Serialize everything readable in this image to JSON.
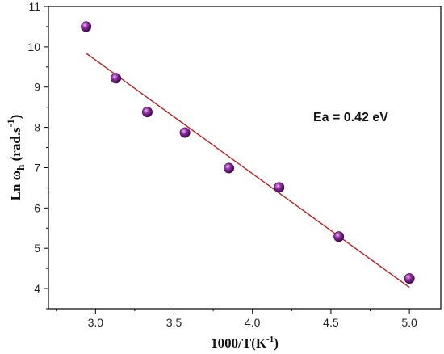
{
  "chart_data": {
    "type": "scatter",
    "x": [
      2.94,
      3.13,
      3.33,
      3.57,
      3.85,
      4.17,
      4.55,
      5.0
    ],
    "y": [
      10.5,
      9.22,
      8.38,
      7.87,
      6.99,
      6.51,
      5.29,
      4.25
    ],
    "fit_line": {
      "x": [
        2.94,
        5.0
      ],
      "y": [
        9.84,
        4.03
      ]
    },
    "xlabel_main": "1000/T(K",
    "xlabel_sup": "-1",
    "xlabel_tail": ")",
    "ylabel_main": "Ln ω",
    "ylabel_sub": "h",
    "ylabel_mid": " (rad.s",
    "ylabel_sup": "-1",
    "ylabel_tail": ")",
    "annotation": "Ea = 0.42 eV",
    "xlim": [
      2.7,
      5.2
    ],
    "ylim": [
      3.5,
      11
    ],
    "xticks": [
      3.0,
      3.5,
      4.0,
      4.5,
      5.0
    ],
    "xtick_labels": [
      "3.0",
      "3.5",
      "4.0",
      "4.5",
      "5.0"
    ],
    "yticks": [
      4,
      5,
      6,
      7,
      8,
      9,
      10,
      11
    ],
    "ytick_labels": [
      "4",
      "5",
      "6",
      "7",
      "8",
      "9",
      "10",
      "11"
    ],
    "grid": false,
    "marker_color": "#7a1a8c",
    "line_color": "#b22222"
  }
}
